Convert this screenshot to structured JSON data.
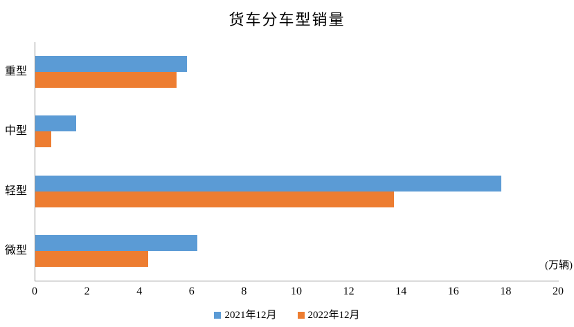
{
  "chart_data": {
    "type": "bar",
    "orientation": "horizontal",
    "title": "货车分车型销量",
    "categories": [
      "重型",
      "中型",
      "轻型",
      "微型"
    ],
    "series": [
      {
        "name": "2021年12月",
        "color": "#5B9BD5",
        "values": [
          5.8,
          1.55,
          17.8,
          6.2
        ]
      },
      {
        "name": "2022年12月",
        "color": "#ED7D31",
        "values": [
          5.4,
          0.6,
          13.7,
          4.3
        ]
      }
    ],
    "xlabel_unit": "(万辆)",
    "x_ticks": [
      0,
      2,
      4,
      6,
      8,
      10,
      12,
      14,
      16,
      18,
      20
    ],
    "xlim": [
      0,
      20
    ],
    "grid": false,
    "legend_position": "bottom",
    "axis_color": "#8f8f8f",
    "background": "#ffffff"
  }
}
